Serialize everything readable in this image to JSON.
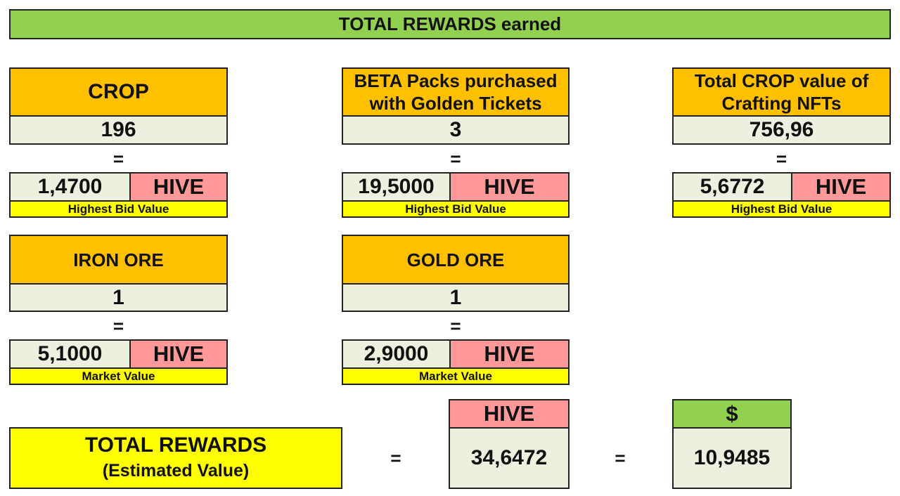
{
  "title": "TOTAL REWARDS earned",
  "equals": "=",
  "currency": "HIVE",
  "cards": [
    {
      "header": "CROP",
      "amount": "196",
      "hive_value": "1,4700",
      "note": "Highest Bid Value"
    },
    {
      "header": "BETA Packs purchased with Golden Tickets",
      "amount": "3",
      "hive_value": "19,5000",
      "note": "Highest Bid Value"
    },
    {
      "header": "Total CROP value of Crafting NFTs",
      "amount": "756,96",
      "hive_value": "5,6772",
      "note": "Highest Bid Value"
    },
    {
      "header": "IRON ORE",
      "amount": "1",
      "hive_value": "5,1000",
      "note": "Market Value"
    },
    {
      "header": "GOLD ORE",
      "amount": "1",
      "hive_value": "2,9000",
      "note": "Market Value"
    }
  ],
  "total": {
    "title": "TOTAL REWARDS",
    "subtitle": "(Estimated Value)",
    "hive_label": "HIVE",
    "hive_amount": "34,6472",
    "usd_label": "$",
    "usd_amount": "10,9485"
  },
  "colors": {
    "title_bar": "#92d050",
    "header": "#ffc000",
    "value_cell": "#ebf1de",
    "hive_cell": "#ff9999",
    "note_bar": "#ffff00"
  }
}
